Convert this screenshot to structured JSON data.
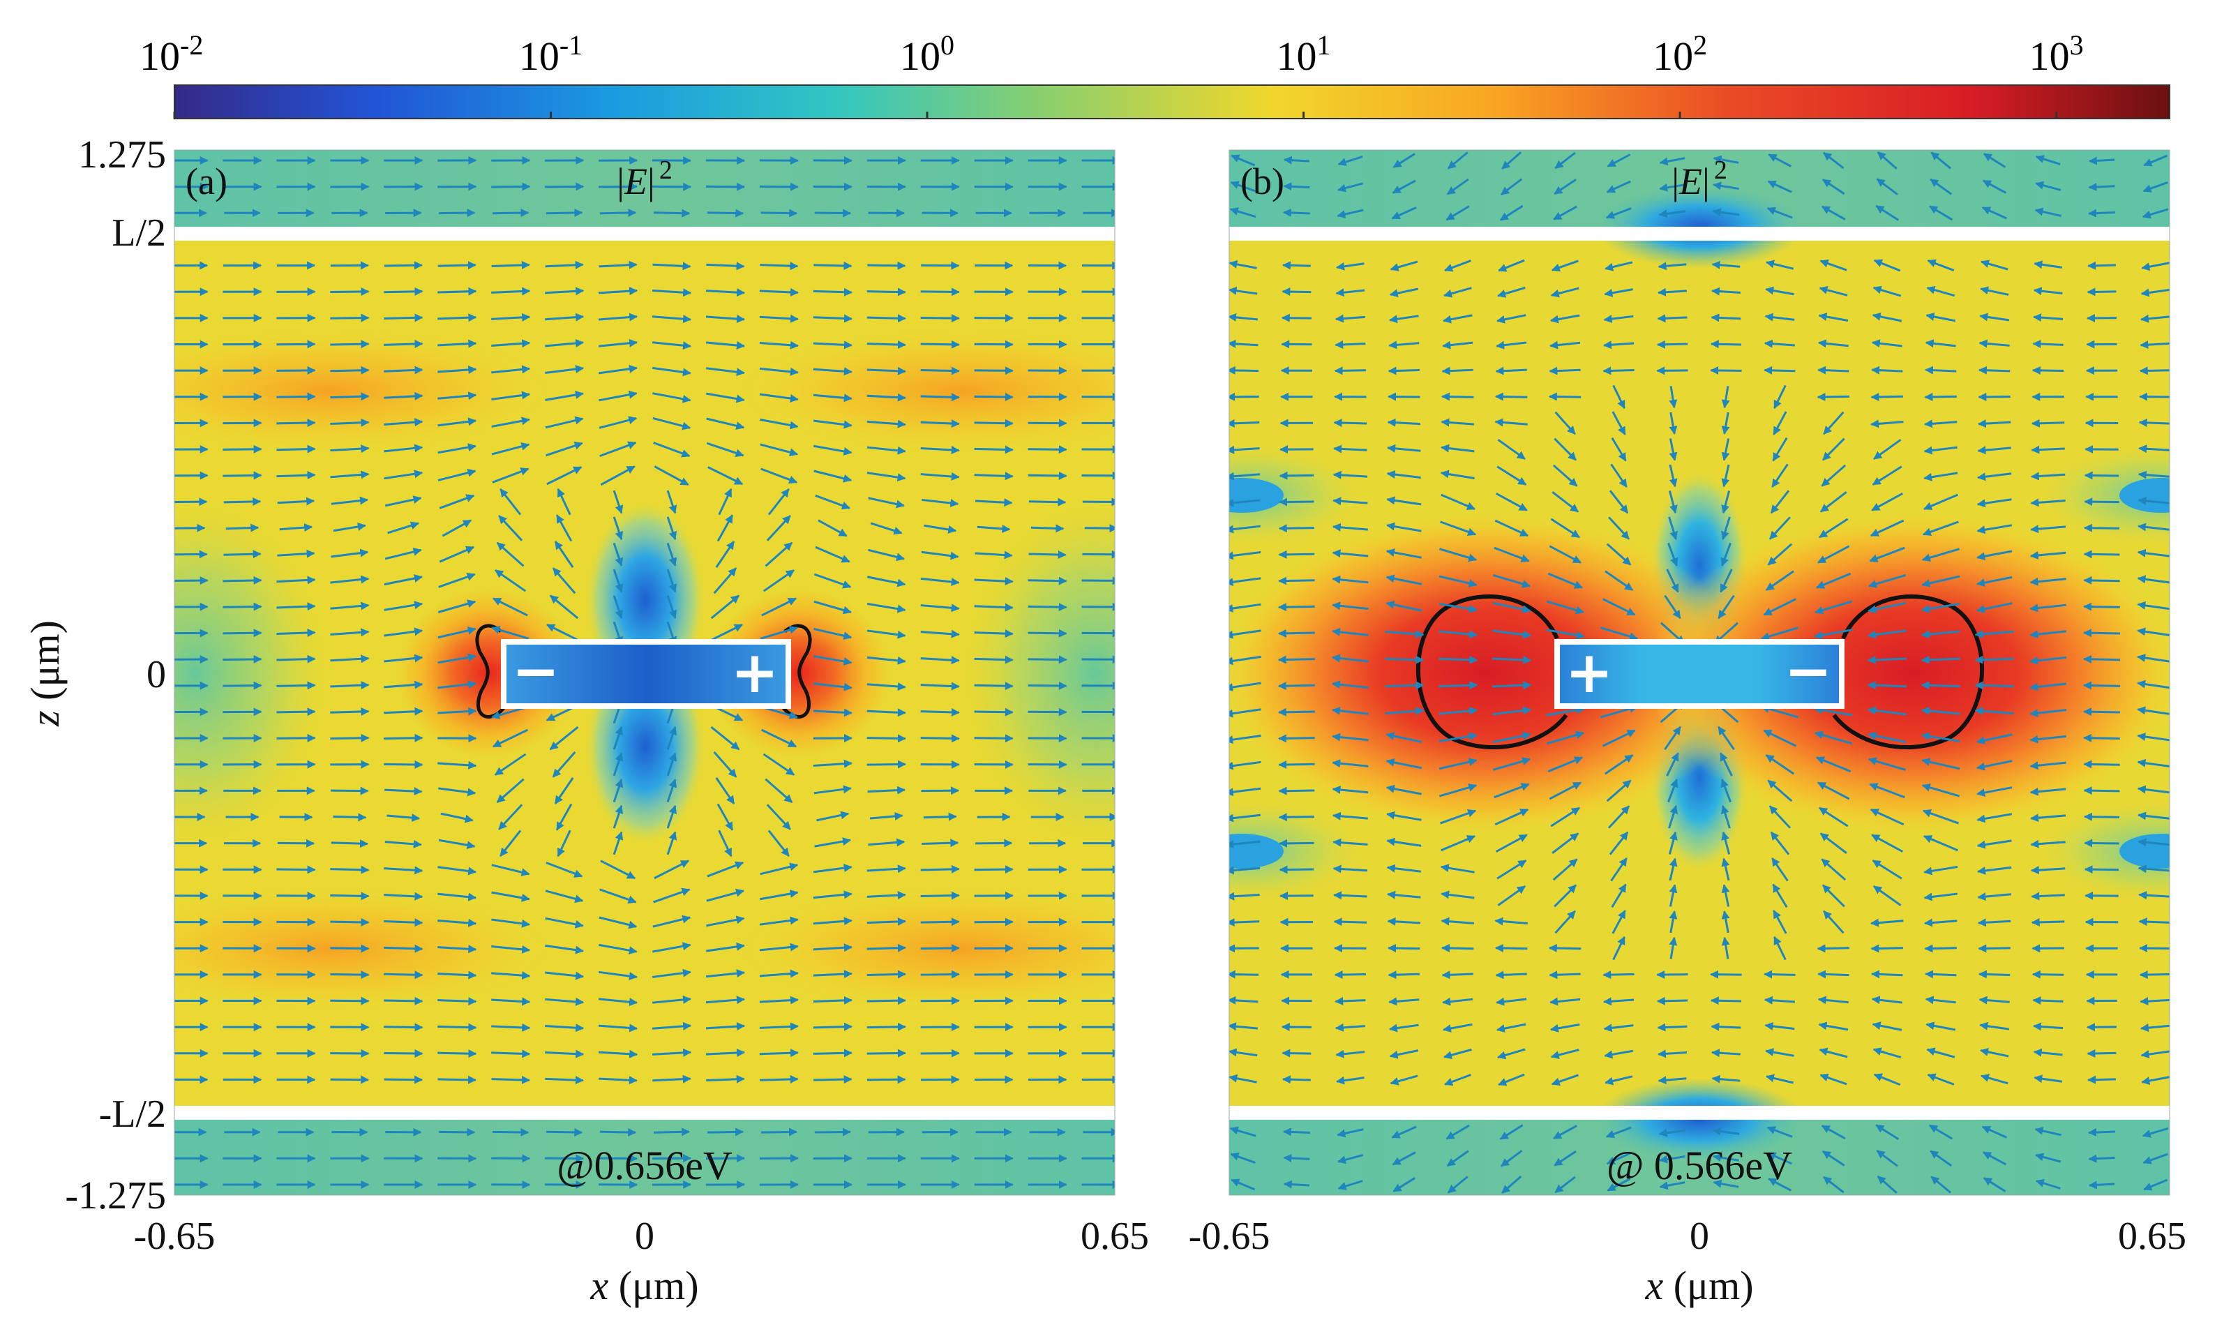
{
  "colorbar": {
    "scale": "log",
    "range": [
      0.01,
      2000
    ],
    "ticks": [
      {
        "value": 0.01,
        "base": "10",
        "exp": "-2"
      },
      {
        "value": 0.1,
        "base": "10",
        "exp": "-1"
      },
      {
        "value": 1,
        "base": "10",
        "exp": "0"
      },
      {
        "value": 10,
        "base": "10",
        "exp": "1"
      },
      {
        "value": 100,
        "base": "10",
        "exp": "2"
      },
      {
        "value": 1000,
        "base": "10",
        "exp": "3"
      }
    ],
    "colormap": [
      "#352a87",
      "#2254d6",
      "#1a9be0",
      "#31c6c2",
      "#8fcf6a",
      "#f0d72c",
      "#f9a622",
      "#ea4b25",
      "#d81d25",
      "#6a1010"
    ]
  },
  "panels": [
    {
      "label": "(a)",
      "quantity_prefix": "|",
      "quantity_var": "E",
      "quantity_suffix": "|",
      "quantity_exp": "2",
      "energy_label": "@0.656eV",
      "charges": [
        "−",
        "+"
      ],
      "xticks": [
        "-0.65",
        "0",
        "0.65"
      ],
      "xlabel_var": "x",
      "xlabel_unit": " (μm)"
    },
    {
      "label": "(b)",
      "quantity_prefix": "|",
      "quantity_var": "E",
      "quantity_suffix": "|",
      "quantity_exp": "2",
      "energy_label": "@ 0.566eV",
      "charges": [
        "+",
        "−"
      ],
      "xticks": [
        "-0.65",
        "0",
        "0.65"
      ],
      "xlabel_var": "x",
      "xlabel_unit": " (μm)"
    }
  ],
  "y_axis": {
    "label_var": "z",
    "label_unit": " (μm)",
    "ticks": [
      "1.275",
      "L/2",
      "0",
      "-L/2",
      "-1.275"
    ]
  },
  "colors": {
    "field_base": "#e9d832",
    "arrow": "#1f86bd",
    "contour": "#111111",
    "rod_fill": "#2d7fd0",
    "rod_border": "#ffffff"
  }
}
